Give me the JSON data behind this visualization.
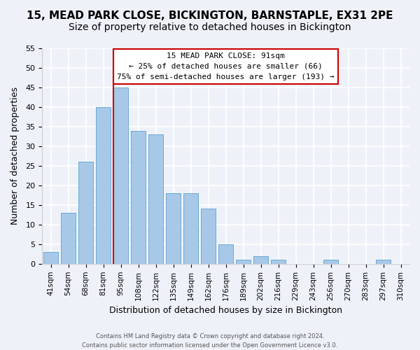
{
  "title": "15, MEAD PARK CLOSE, BICKINGTON, BARNSTAPLE, EX31 2PE",
  "subtitle": "Size of property relative to detached houses in Bickington",
  "xlabel": "Distribution of detached houses by size in Bickington",
  "ylabel": "Number of detached properties",
  "bar_labels": [
    "41sqm",
    "54sqm",
    "68sqm",
    "81sqm",
    "95sqm",
    "108sqm",
    "122sqm",
    "135sqm",
    "149sqm",
    "162sqm",
    "176sqm",
    "189sqm",
    "202sqm",
    "216sqm",
    "229sqm",
    "243sqm",
    "256sqm",
    "270sqm",
    "283sqm",
    "297sqm",
    "310sqm"
  ],
  "bar_values": [
    3,
    13,
    26,
    40,
    45,
    34,
    33,
    18,
    18,
    14,
    5,
    1,
    2,
    1,
    0,
    0,
    1,
    0,
    0,
    1,
    0
  ],
  "bar_color": "#a8c8e8",
  "bar_edge_color": "#6aaad4",
  "vline_x_index": 4,
  "vline_color": "#cc0000",
  "ylim": [
    0,
    55
  ],
  "yticks": [
    0,
    5,
    10,
    15,
    20,
    25,
    30,
    35,
    40,
    45,
    50,
    55
  ],
  "annotation_title": "15 MEAD PARK CLOSE: 91sqm",
  "annotation_line1": "← 25% of detached houses are smaller (66)",
  "annotation_line2": "75% of semi-detached houses are larger (193) →",
  "annotation_box_color": "#ffffff",
  "annotation_box_edgecolor": "#cc0000",
  "footer1": "Contains HM Land Registry data © Crown copyright and database right 2024.",
  "footer2": "Contains public sector information licensed under the Open Government Licence v3.0.",
  "background_color": "#eef2f8",
  "grid_color": "#ffffff",
  "title_fontsize": 11,
  "subtitle_fontsize": 10
}
